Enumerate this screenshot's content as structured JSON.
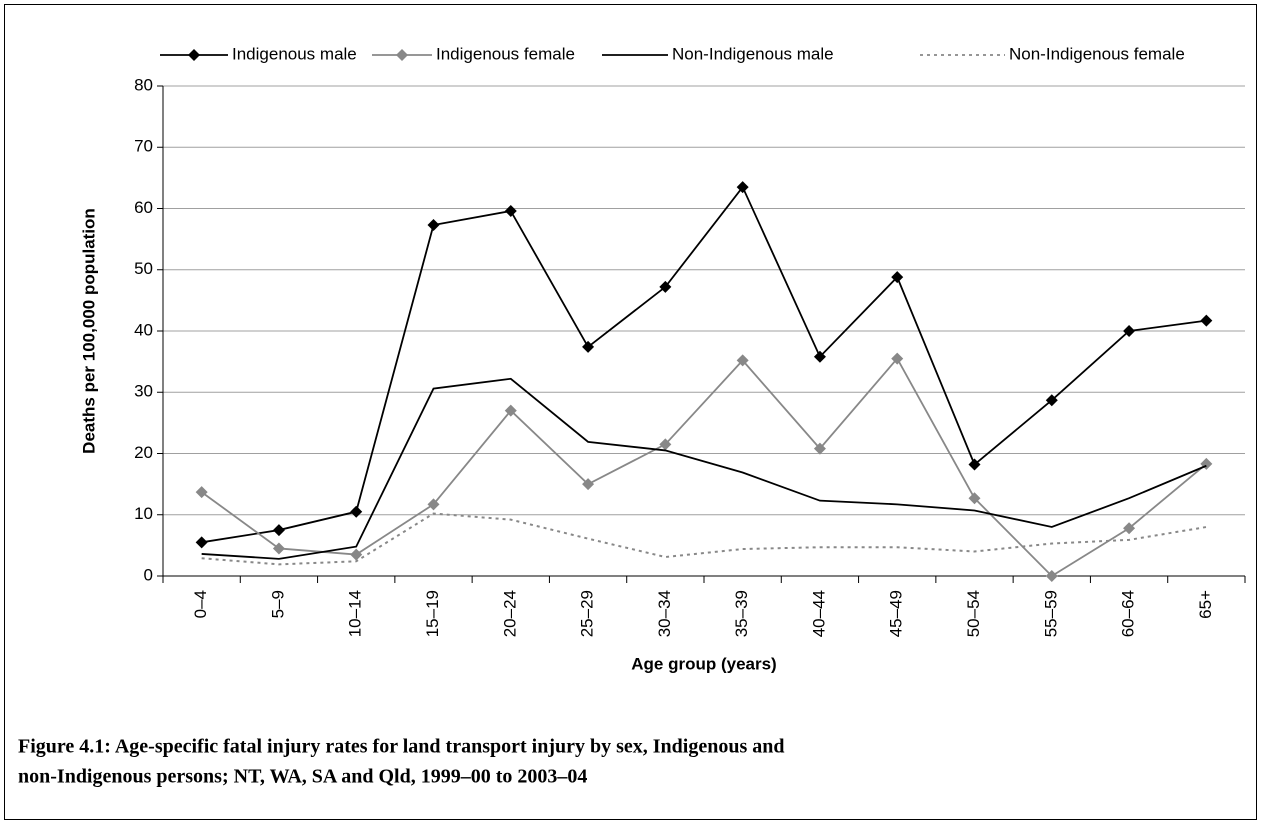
{
  "chart_data": {
    "type": "line",
    "caption": [
      "Figure 4.1: Age-specific fatal injury rates for land transport injury by sex, Indigenous and",
      "non-Indigenous persons; NT, WA, SA and Qld, 1999–00 to 2003–04"
    ],
    "x_label": "Age group (years)",
    "y_label": "Deaths per 100,000 population",
    "categories": [
      "0–4",
      "5–9",
      "10–14",
      "15–19",
      "20–24",
      "25–29",
      "30–34",
      "35–39",
      "40–44",
      "45–49",
      "50–54",
      "55–59",
      "60–64",
      "65+"
    ],
    "ylim": [
      0,
      80
    ],
    "yticks": [
      0,
      10,
      20,
      30,
      40,
      50,
      60,
      70,
      80
    ],
    "grid": true,
    "legend": "top",
    "series": [
      {
        "name": "Indigenous male",
        "color": "#000000",
        "marker": "diamond",
        "dash": "solid",
        "values": [
          5.5,
          7.5,
          10.5,
          57.3,
          59.6,
          37.4,
          47.2,
          63.5,
          35.8,
          48.8,
          18.2,
          28.7,
          40.0,
          41.7
        ]
      },
      {
        "name": "Indigenous female",
        "color": "#888888",
        "marker": "diamond",
        "dash": "solid",
        "values": [
          13.7,
          4.5,
          3.5,
          11.7,
          27.0,
          15.0,
          21.5,
          35.2,
          20.8,
          35.5,
          12.7,
          0.0,
          7.8,
          18.3
        ]
      },
      {
        "name": "Non-Indigenous male",
        "color": "#000000",
        "marker": "none",
        "dash": "solid",
        "values": [
          3.6,
          2.8,
          4.8,
          30.6,
          32.2,
          21.9,
          20.5,
          16.9,
          12.3,
          11.7,
          10.7,
          8.0,
          12.7,
          18.0
        ]
      },
      {
        "name": "Non-Indigenous female",
        "color": "#888888",
        "marker": "none",
        "dash": "dotted",
        "values": [
          2.9,
          1.9,
          2.4,
          10.2,
          9.2,
          6.1,
          3.1,
          4.4,
          4.7,
          4.7,
          4.0,
          5.3,
          5.9,
          8.0
        ]
      }
    ]
  }
}
